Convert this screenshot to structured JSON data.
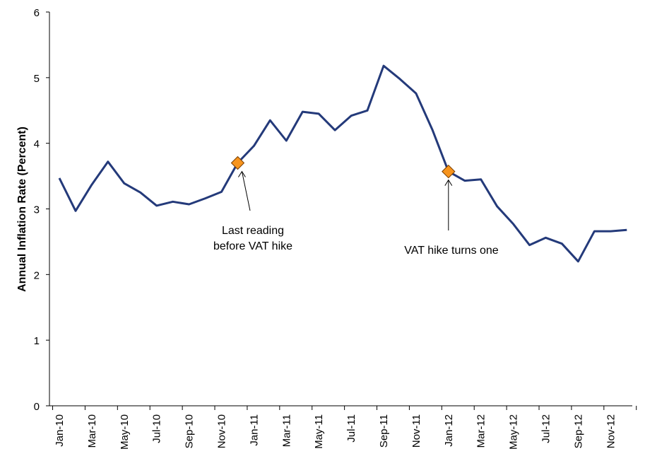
{
  "chart_data": {
    "type": "line",
    "title": "",
    "xlabel": "",
    "ylabel": "Annual Inflation Rate (Percent)",
    "ylim": [
      0,
      6
    ],
    "yticks": [
      0,
      1,
      2,
      3,
      4,
      5,
      6
    ],
    "grid": false,
    "x": [
      "Jan-10",
      "Feb-10",
      "Mar-10",
      "Apr-10",
      "May-10",
      "Jun-10",
      "Jul-10",
      "Aug-10",
      "Sep-10",
      "Oct-10",
      "Nov-10",
      "Dec-10",
      "Jan-11",
      "Feb-11",
      "Mar-11",
      "Apr-11",
      "May-11",
      "Jun-11",
      "Jul-11",
      "Aug-11",
      "Sep-11",
      "Oct-11",
      "Nov-11",
      "Dec-11",
      "Jan-12",
      "Feb-12",
      "Mar-12",
      "Apr-12",
      "May-12",
      "Jun-12",
      "Jul-12",
      "Aug-12",
      "Sep-12",
      "Oct-12",
      "Nov-12",
      "Dec-12"
    ],
    "xtick_labels": [
      "Jan-10",
      "Mar-10",
      "May-10",
      "Jul-10",
      "Sep-10",
      "Nov-10",
      "Jan-11",
      "Mar-11",
      "May-11",
      "Jul-11",
      "Sep-11",
      "Nov-11",
      "Jan-12",
      "Mar-12",
      "May-12",
      "Jul-12",
      "Sep-12",
      "Nov-12"
    ],
    "series": [
      {
        "color": "#243a7a",
        "values": [
          3.47,
          2.97,
          3.37,
          3.72,
          3.39,
          3.25,
          3.05,
          3.11,
          3.07,
          3.16,
          3.26,
          3.7,
          3.96,
          4.35,
          4.04,
          4.48,
          4.45,
          4.2,
          4.42,
          4.5,
          5.18,
          4.98,
          4.76,
          4.21,
          3.57,
          3.43,
          3.45,
          3.04,
          2.77,
          2.45,
          2.56,
          2.47,
          2.2,
          2.66,
          2.66,
          2.68
        ]
      }
    ],
    "markers": [
      {
        "x": "Dec-10",
        "y": 3.7,
        "color": "#f7941d"
      },
      {
        "x": "Jan-12",
        "y": 3.57,
        "color": "#f7941d"
      }
    ],
    "annotations": [
      {
        "target": "Dec-10",
        "lines": [
          "Last reading",
          "before VAT hike"
        ]
      },
      {
        "target": "Jan-12",
        "lines": [
          "VAT hike turns one"
        ]
      }
    ]
  }
}
